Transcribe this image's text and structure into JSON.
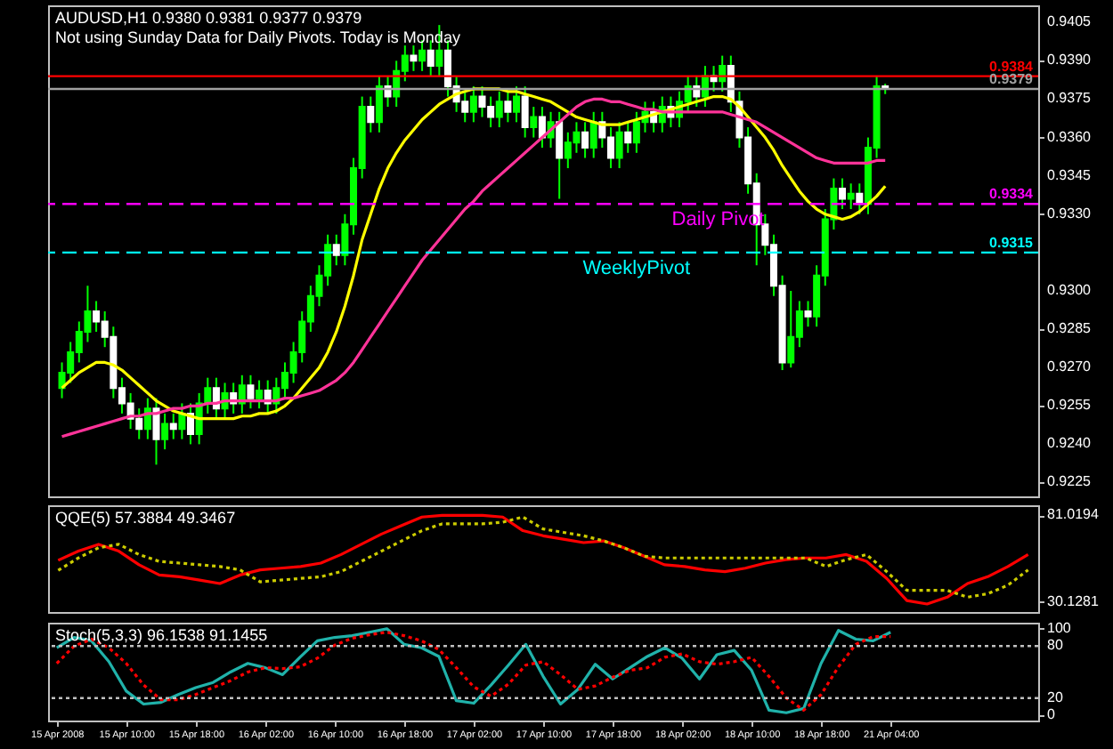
{
  "chart_data": [
    {
      "type": "candlestick",
      "title": "AUDUSD,H1  0.9380 0.9381 0.9377 0.9379",
      "subtitle": "Not using Sunday Data for Daily Pivots.  Today is Monday",
      "categories": [
        null,
        null,
        null,
        null,
        null,
        null,
        null,
        null,
        null,
        null,
        null,
        null,
        null,
        null,
        null,
        null,
        null,
        null,
        null,
        null,
        null,
        null,
        null,
        null,
        null,
        null,
        null,
        null,
        null,
        null,
        null,
        null,
        null,
        null,
        null,
        null,
        null,
        null,
        null,
        null,
        null,
        null,
        null,
        null,
        null,
        null,
        null,
        null,
        null,
        null,
        null,
        null,
        null,
        null,
        null,
        null,
        null,
        null,
        null,
        null,
        null,
        null,
        null,
        null,
        null,
        null,
        null,
        null,
        null,
        null,
        null,
        null,
        null,
        null,
        null,
        null,
        null,
        null,
        null,
        null,
        null,
        null,
        null,
        null,
        null,
        null,
        null,
        null,
        null,
        null,
        null,
        null,
        null,
        null,
        null,
        null,
        null
      ],
      "ohlc": [
        [
          0.9262,
          0.9272,
          0.9258,
          0.9268
        ],
        [
          0.9268,
          0.928,
          0.9264,
          0.9276
        ],
        [
          0.9276,
          0.9288,
          0.9272,
          0.9284
        ],
        [
          0.9284,
          0.9302,
          0.928,
          0.9292
        ],
        [
          0.9292,
          0.9296,
          0.9284,
          0.9288
        ],
        [
          0.9288,
          0.9292,
          0.9278,
          0.9282
        ],
        [
          0.9282,
          0.9286,
          0.9258,
          0.9262
        ],
        [
          0.9262,
          0.9266,
          0.9252,
          0.9256
        ],
        [
          0.9256,
          0.926,
          0.9246,
          0.925
        ],
        [
          0.925,
          0.9254,
          0.9242,
          0.9246
        ],
        [
          0.9246,
          0.9258,
          0.9242,
          0.9254
        ],
        [
          0.9254,
          0.9258,
          0.9232,
          0.9242
        ],
        [
          0.9242,
          0.9252,
          0.9238,
          0.9248
        ],
        [
          0.9248,
          0.9252,
          0.9242,
          0.9246
        ],
        [
          0.9246,
          0.9256,
          0.9242,
          0.9252
        ],
        [
          0.9252,
          0.9256,
          0.924,
          0.9244
        ],
        [
          0.9244,
          0.926,
          0.924,
          0.9256
        ],
        [
          0.9256,
          0.9266,
          0.9252,
          0.9262
        ],
        [
          0.9262,
          0.9266,
          0.925,
          0.9254
        ],
        [
          0.9254,
          0.9264,
          0.925,
          0.926
        ],
        [
          0.926,
          0.9264,
          0.9252,
          0.9256
        ],
        [
          0.9256,
          0.9267,
          0.9252,
          0.9263
        ],
        [
          0.9263,
          0.9267,
          0.9254,
          0.9258
        ],
        [
          0.9258,
          0.9265,
          0.9254,
          0.9261
        ],
        [
          0.9261,
          0.9265,
          0.9252,
          0.9256
        ],
        [
          0.9256,
          0.9266,
          0.9252,
          0.9262
        ],
        [
          0.9262,
          0.9272,
          0.9258,
          0.9268
        ],
        [
          0.9268,
          0.928,
          0.9264,
          0.9276
        ],
        [
          0.9276,
          0.9292,
          0.9272,
          0.9288
        ],
        [
          0.9288,
          0.9302,
          0.9284,
          0.9298
        ],
        [
          0.9298,
          0.931,
          0.9294,
          0.9306
        ],
        [
          0.9306,
          0.9322,
          0.9302,
          0.9318
        ],
        [
          0.9318,
          0.9322,
          0.931,
          0.9314
        ],
        [
          0.9314,
          0.933,
          0.931,
          0.9326
        ],
        [
          0.9326,
          0.9352,
          0.9322,
          0.9348
        ],
        [
          0.9348,
          0.9376,
          0.9344,
          0.9372
        ],
        [
          0.9372,
          0.9376,
          0.9362,
          0.9366
        ],
        [
          0.9366,
          0.9384,
          0.9362,
          0.938
        ],
        [
          0.938,
          0.9384,
          0.9372,
          0.9376
        ],
        [
          0.9376,
          0.939,
          0.9372,
          0.9386
        ],
        [
          0.9386,
          0.9396,
          0.9382,
          0.9392
        ],
        [
          0.9392,
          0.9396,
          0.9386,
          0.939
        ],
        [
          0.939,
          0.9398,
          0.9386,
          0.9394
        ],
        [
          0.9394,
          0.9398,
          0.9384,
          0.9388
        ],
        [
          0.9388,
          0.9404,
          0.9384,
          0.9394
        ],
        [
          0.9394,
          0.9398,
          0.9376,
          0.938
        ],
        [
          0.938,
          0.9384,
          0.937,
          0.9374
        ],
        [
          0.9374,
          0.9378,
          0.9366,
          0.937
        ],
        [
          0.937,
          0.938,
          0.9366,
          0.9376
        ],
        [
          0.9376,
          0.938,
          0.9368,
          0.9372
        ],
        [
          0.9372,
          0.9376,
          0.9364,
          0.9368
        ],
        [
          0.9368,
          0.9378,
          0.9364,
          0.9374
        ],
        [
          0.9374,
          0.9378,
          0.9366,
          0.937
        ],
        [
          0.937,
          0.938,
          0.9366,
          0.9376
        ],
        [
          0.9376,
          0.938,
          0.936,
          0.9364
        ],
        [
          0.9364,
          0.9372,
          0.936,
          0.9368
        ],
        [
          0.9368,
          0.9372,
          0.9356,
          0.936
        ],
        [
          0.936,
          0.937,
          0.9356,
          0.9366
        ],
        [
          0.9366,
          0.937,
          0.9336,
          0.9352
        ],
        [
          0.9352,
          0.9362,
          0.9348,
          0.9358
        ],
        [
          0.9358,
          0.9366,
          0.9354,
          0.9362
        ],
        [
          0.9362,
          0.9366,
          0.9352,
          0.9356
        ],
        [
          0.9356,
          0.937,
          0.9352,
          0.9366
        ],
        [
          0.9366,
          0.937,
          0.9356,
          0.936
        ],
        [
          0.936,
          0.9364,
          0.9348,
          0.9352
        ],
        [
          0.9352,
          0.9366,
          0.9348,
          0.9362
        ],
        [
          0.9362,
          0.9366,
          0.9354,
          0.9358
        ],
        [
          0.9358,
          0.937,
          0.9354,
          0.9366
        ],
        [
          0.9366,
          0.9374,
          0.9362,
          0.937
        ],
        [
          0.937,
          0.9374,
          0.9362,
          0.9366
        ],
        [
          0.9366,
          0.9376,
          0.9362,
          0.9372
        ],
        [
          0.9372,
          0.9376,
          0.9364,
          0.9368
        ],
        [
          0.9368,
          0.9378,
          0.9364,
          0.9374
        ],
        [
          0.9374,
          0.9384,
          0.937,
          0.938
        ],
        [
          0.938,
          0.9384,
          0.9372,
          0.9376
        ],
        [
          0.9376,
          0.9388,
          0.9372,
          0.9384
        ],
        [
          0.9384,
          0.9388,
          0.9378,
          0.9382
        ],
        [
          0.9382,
          0.9392,
          0.9378,
          0.9388
        ],
        [
          0.9388,
          0.9392,
          0.937,
          0.9374
        ],
        [
          0.9374,
          0.9378,
          0.9356,
          0.936
        ],
        [
          0.936,
          0.9364,
          0.9338,
          0.9342
        ],
        [
          0.9342,
          0.9346,
          0.931,
          0.9326
        ],
        [
          0.9326,
          0.933,
          0.9314,
          0.9318
        ],
        [
          0.9318,
          0.9322,
          0.9298,
          0.9302
        ],
        [
          0.9302,
          0.9306,
          0.9269,
          0.9272
        ],
        [
          0.9272,
          0.93,
          0.927,
          0.9282
        ],
        [
          0.9282,
          0.9296,
          0.9278,
          0.9292
        ],
        [
          0.9292,
          0.9296,
          0.9286,
          0.929
        ],
        [
          0.929,
          0.931,
          0.9286,
          0.9306
        ],
        [
          0.9306,
          0.9332,
          0.9302,
          0.9328
        ],
        [
          0.9328,
          0.9344,
          0.9324,
          0.934
        ],
        [
          0.934,
          0.9344,
          0.9332,
          0.9336
        ],
        [
          0.9336,
          0.9342,
          0.9332,
          0.9338
        ],
        [
          0.9338,
          0.9342,
          0.933,
          0.9334
        ],
        [
          0.9334,
          0.936,
          0.933,
          0.9356
        ],
        [
          0.9356,
          0.9384,
          0.9352,
          0.938
        ],
        [
          0.938,
          0.9381,
          0.9377,
          0.9379
        ]
      ],
      "series": [
        {
          "type": "line",
          "color": "#ffff00",
          "values": [
            0.9262,
            0.9265,
            0.9268,
            0.927,
            0.9272,
            0.9272,
            0.9271,
            0.9269,
            0.9266,
            0.9263,
            0.926,
            0.9257,
            0.9255,
            0.9253,
            0.9252,
            0.9251,
            0.925,
            0.925,
            0.925,
            0.925,
            0.925,
            0.9251,
            0.9251,
            0.9252,
            0.9252,
            0.9253,
            0.9255,
            0.9258,
            0.9262,
            0.9266,
            0.927,
            0.9276,
            0.9284,
            0.9294,
            0.9306,
            0.932,
            0.933,
            0.934,
            0.9348,
            0.9354,
            0.9359,
            0.9363,
            0.9367,
            0.937,
            0.9373,
            0.9375,
            0.9377,
            0.9378,
            0.9379,
            0.9379,
            0.9379,
            0.9379,
            0.9378,
            0.9378,
            0.9377,
            0.9376,
            0.9375,
            0.9374,
            0.9372,
            0.937,
            0.9368,
            0.9367,
            0.9366,
            0.9365,
            0.9365,
            0.9365,
            0.9366,
            0.9367,
            0.9368,
            0.9369,
            0.937,
            0.9371,
            0.9372,
            0.9373,
            0.9374,
            0.9375,
            0.9376,
            0.9376,
            0.9375,
            0.9372,
            0.9368,
            0.9364,
            0.936,
            0.9355,
            0.9349,
            0.9344,
            0.9339,
            0.9335,
            0.9332,
            0.933,
            0.9329,
            0.9328,
            0.9329,
            0.9331,
            0.9334,
            0.9337,
            0.9341
          ]
        },
        {
          "type": "line",
          "color": "#ff3399",
          "values": [
            0.9243,
            0.9244,
            0.9245,
            0.9246,
            0.9247,
            0.9248,
            0.9249,
            0.925,
            0.9251,
            0.9251,
            0.9252,
            0.9252,
            0.9253,
            0.9254,
            0.9254,
            0.9255,
            0.9255,
            0.9256,
            0.9256,
            0.9257,
            0.9257,
            0.9257,
            0.9257,
            0.9257,
            0.9257,
            0.9257,
            0.9258,
            0.9258,
            0.9259,
            0.926,
            0.9261,
            0.9263,
            0.9265,
            0.9268,
            0.9272,
            0.9277,
            0.9282,
            0.9287,
            0.9292,
            0.9297,
            0.9302,
            0.9307,
            0.9312,
            0.9316,
            0.932,
            0.9324,
            0.9328,
            0.9332,
            0.9335,
            0.9339,
            0.9342,
            0.9345,
            0.9348,
            0.9351,
            0.9354,
            0.9357,
            0.936,
            0.9363,
            0.9366,
            0.9369,
            0.9372,
            0.9374,
            0.9375,
            0.9375,
            0.9374,
            0.9374,
            0.9373,
            0.9372,
            0.9371,
            0.9371,
            0.937,
            0.937,
            0.937,
            0.937,
            0.937,
            0.937,
            0.937,
            0.937,
            0.9369,
            0.9368,
            0.9367,
            0.9366,
            0.9364,
            0.9362,
            0.936,
            0.9358,
            0.9356,
            0.9354,
            0.9352,
            0.9351,
            0.935,
            0.935,
            0.935,
            0.935,
            0.935,
            0.9351,
            0.9351
          ]
        }
      ],
      "ylim": [
        0.92196,
        0.94117
      ],
      "yticks": [
        0.9405,
        {
          "value": 0.939,
          "label": "0.9390"
        },
        0.9375,
        {
          "value": 0.936,
          "label": "0.9360"
        },
        0.9345,
        {
          "value": 0.933,
          "label": "0.9330"
        },
        {
          "value": 0.93,
          "label": "0.9300"
        },
        0.9285,
        {
          "value": 0.927,
          "label": "0.9270"
        },
        0.9255,
        {
          "value": 0.924,
          "label": "0.9240"
        },
        0.9225
      ],
      "ref_lines": [
        {
          "axis": "y",
          "value": 0.9384,
          "color": "#ff0000"
        },
        {
          "axis": "y",
          "value": 0.9379,
          "color": "#a0a0a0"
        },
        {
          "axis": "y",
          "value": 0.9334,
          "label": "Daily Pivot",
          "color": "#ff00ff",
          "line_style": "dashed"
        },
        {
          "axis": "y",
          "value": 0.9315,
          "label": "WeeklyPivot",
          "color": "#00ffff",
          "line_style": "dashed"
        }
      ],
      "annotations": [
        "0.9384",
        "0.9379",
        "0.9334",
        "0.9315"
      ],
      "tick_labels": "y"
    },
    {
      "type": "line",
      "title": "QQE(5) 57.3884 49.3467",
      "categories": [
        null,
        null,
        null,
        null,
        null,
        null,
        null,
        null,
        null,
        null,
        null,
        null,
        null,
        null,
        null,
        null,
        null,
        null,
        null,
        null,
        null,
        null,
        null,
        null,
        null,
        null,
        null,
        null,
        null,
        null,
        null,
        null,
        null,
        null,
        null,
        null,
        null,
        null,
        null,
        null,
        null,
        null,
        null,
        null,
        null,
        null,
        null,
        null,
        null
      ],
      "series": [
        {
          "color": "#ff0000",
          "line_style": "solid",
          "values": [
            54.6,
            60,
            64,
            60,
            52,
            46,
            45,
            43,
            41,
            46,
            49,
            50,
            51,
            53,
            58,
            64,
            70,
            75,
            80,
            81,
            81,
            81,
            80,
            72,
            69,
            67,
            65,
            66,
            62,
            57,
            52,
            51,
            49,
            48,
            50,
            53,
            55,
            56,
            56,
            58,
            54,
            44,
            31,
            29,
            33,
            41,
            45,
            51,
            58
          ]
        },
        {
          "color": "#cccc00",
          "line_style": "dotted",
          "values": [
            48.7,
            56,
            62,
            64,
            58,
            54,
            53,
            52,
            51,
            49,
            42,
            43,
            44,
            45,
            48,
            54,
            60,
            66,
            72,
            76,
            76,
            76,
            77,
            80,
            73,
            71,
            69,
            66,
            62,
            57,
            56,
            56,
            56,
            56,
            56,
            56,
            56,
            56,
            51,
            55,
            58,
            48,
            37,
            37,
            37,
            33,
            35,
            40,
            49
          ]
        }
      ],
      "ylim": [
        24.3,
        86.9
      ],
      "yticks": [
        {
          "value": 81.0194,
          "label": "81.0194"
        },
        {
          "value": 30.1281,
          "label": "30.1281"
        }
      ],
      "tick_labels": "y"
    },
    {
      "type": "line",
      "title": "Stoch(5,3,3) 96.1538 91.1455",
      "categories": [
        "15 Apr 2008",
        null,
        null,
        null,
        "15 Apr 10:00",
        null,
        null,
        null,
        "15 Apr 18:00",
        null,
        null,
        null,
        "16 Apr 02:00",
        null,
        null,
        null,
        "16 Apr 10:00",
        null,
        null,
        null,
        "16 Apr 18:00",
        null,
        null,
        null,
        "17 Apr 02:00",
        null,
        null,
        null,
        "17 Apr 10:00",
        null,
        null,
        null,
        "17 Apr 18:00",
        null,
        null,
        null,
        "18 Apr 02:00",
        null,
        null,
        null,
        "18 Apr 10:00",
        null,
        null,
        null,
        "18 Apr 18:00",
        null,
        null,
        null,
        "21 Apr 04:00",
        null,
        null,
        null,
        null,
        null,
        null,
        null,
        null
      ],
      "series": [
        {
          "color": "#20b2aa",
          "line_style": "solid",
          "values": [
            78,
            90,
            86,
            62,
            28,
            13,
            15,
            24,
            32,
            38,
            50,
            60,
            55,
            47,
            67,
            86,
            90,
            92,
            96,
            100,
            82,
            78,
            68,
            17,
            14,
            35,
            58,
            82,
            45,
            13,
            30,
            59,
            42,
            55,
            68,
            78,
            66,
            42,
            70,
            75,
            52,
            6,
            3,
            8,
            60,
            98,
            88,
            86,
            96,
            null,
            null,
            null,
            null,
            null,
            null,
            null,
            null
          ]
        },
        {
          "color": "#ff0000",
          "line_style": "dotted",
          "values": [
            60,
            80,
            88,
            78,
            60,
            35,
            18,
            18,
            24,
            32,
            40,
            50,
            55,
            54,
            56,
            66,
            81,
            89,
            93,
            96,
            92,
            86,
            76,
            55,
            33,
            22,
            36,
            58,
            62,
            47,
            30,
            34,
            44,
            52,
            55,
            67,
            71,
            62,
            59,
            62,
            67,
            45,
            20,
            6,
            24,
            56,
            82,
            91,
            91,
            null,
            null,
            null,
            null,
            null,
            null,
            null,
            null
          ]
        }
      ],
      "ylim": [
        -6,
        107
      ],
      "yticks": [
        100,
        80,
        20,
        0
      ],
      "ref_lines": [
        {
          "axis": "y",
          "value": 80,
          "color": "#c0c0c0",
          "line_style": "dotted"
        },
        {
          "axis": "y",
          "value": 20,
          "color": "#c0c0c0",
          "line_style": "dotted"
        }
      ]
    }
  ]
}
